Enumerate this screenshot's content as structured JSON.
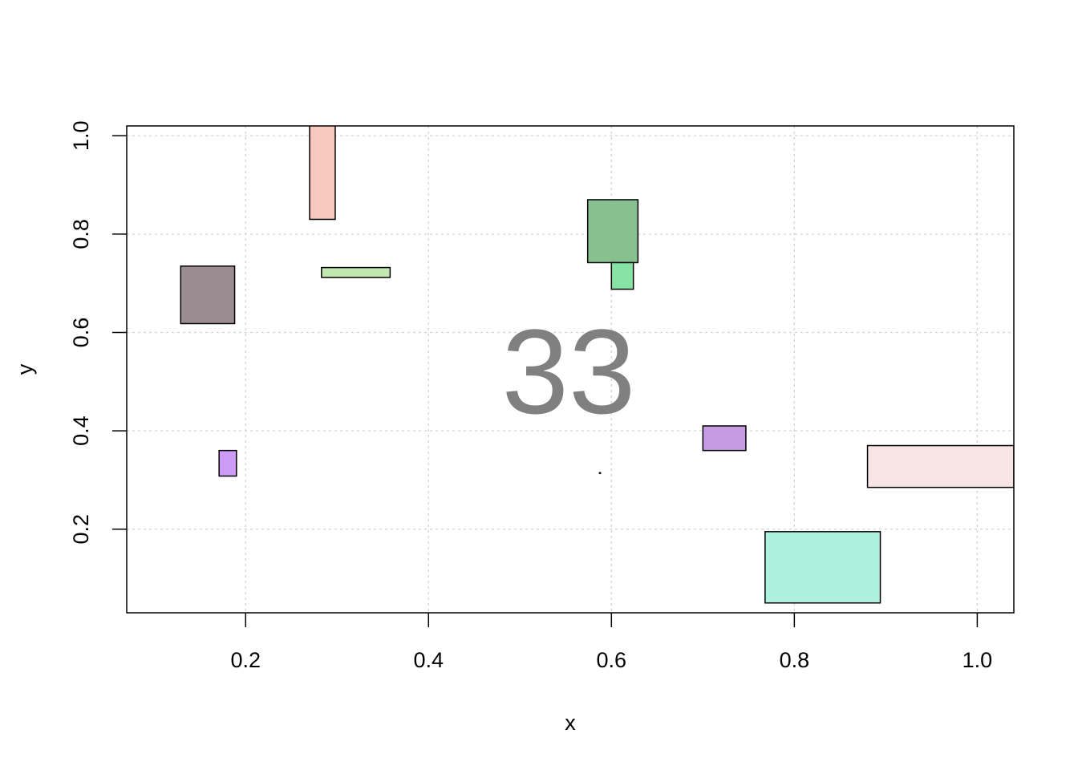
{
  "chart_data": {
    "type": "rect",
    "title": "",
    "xlabel": "x",
    "ylabel": "y",
    "xlim": [
      0.07,
      1.04
    ],
    "ylim": [
      0.03,
      1.02
    ],
    "x_ticks": [
      0.2,
      0.4,
      0.6,
      0.8,
      1.0
    ],
    "x_tick_labels": [
      "0.2",
      "0.4",
      "0.6",
      "0.8",
      "1.0"
    ],
    "y_ticks": [
      0.2,
      0.4,
      0.6,
      0.8,
      1.0
    ],
    "y_tick_labels": [
      "0.2",
      "0.4",
      "0.6",
      "0.8",
      "1.0"
    ],
    "grid": true,
    "annotation": "33",
    "rectangles": [
      {
        "xmin": 0.129,
        "xmax": 0.188,
        "ymin": 0.618,
        "ymax": 0.735,
        "color": "#9b8c91"
      },
      {
        "xmin": 0.27,
        "xmax": 0.298,
        "ymin": 0.83,
        "ymax": 1.03,
        "color": "#f7c8bd"
      },
      {
        "xmin": 0.283,
        "xmax": 0.358,
        "ymin": 0.712,
        "ymax": 0.732,
        "color": "#c2e8b2"
      },
      {
        "xmin": 0.574,
        "xmax": 0.629,
        "ymin": 0.742,
        "ymax": 0.87,
        "color": "#88c190"
      },
      {
        "xmin": 0.6,
        "xmax": 0.624,
        "ymin": 0.688,
        "ymax": 0.742,
        "color": "#86e2a5"
      },
      {
        "xmin": 0.171,
        "xmax": 0.19,
        "ymin": 0.308,
        "ymax": 0.36,
        "color": "#cd9cf7"
      },
      {
        "xmin": 0.7,
        "xmax": 0.747,
        "ymin": 0.36,
        "ymax": 0.41,
        "color": "#c69be4"
      },
      {
        "xmin": 0.88,
        "xmax": 1.04,
        "ymin": 0.285,
        "ymax": 0.37,
        "color": "#f8e4e5"
      },
      {
        "xmin": 0.768,
        "xmax": 0.894,
        "ymin": 0.05,
        "ymax": 0.195,
        "color": "#adf0dd"
      },
      {
        "xmin": 0.587,
        "xmax": 0.588,
        "ymin": 0.314,
        "ymax": 0.315,
        "color": "#000000"
      }
    ]
  }
}
